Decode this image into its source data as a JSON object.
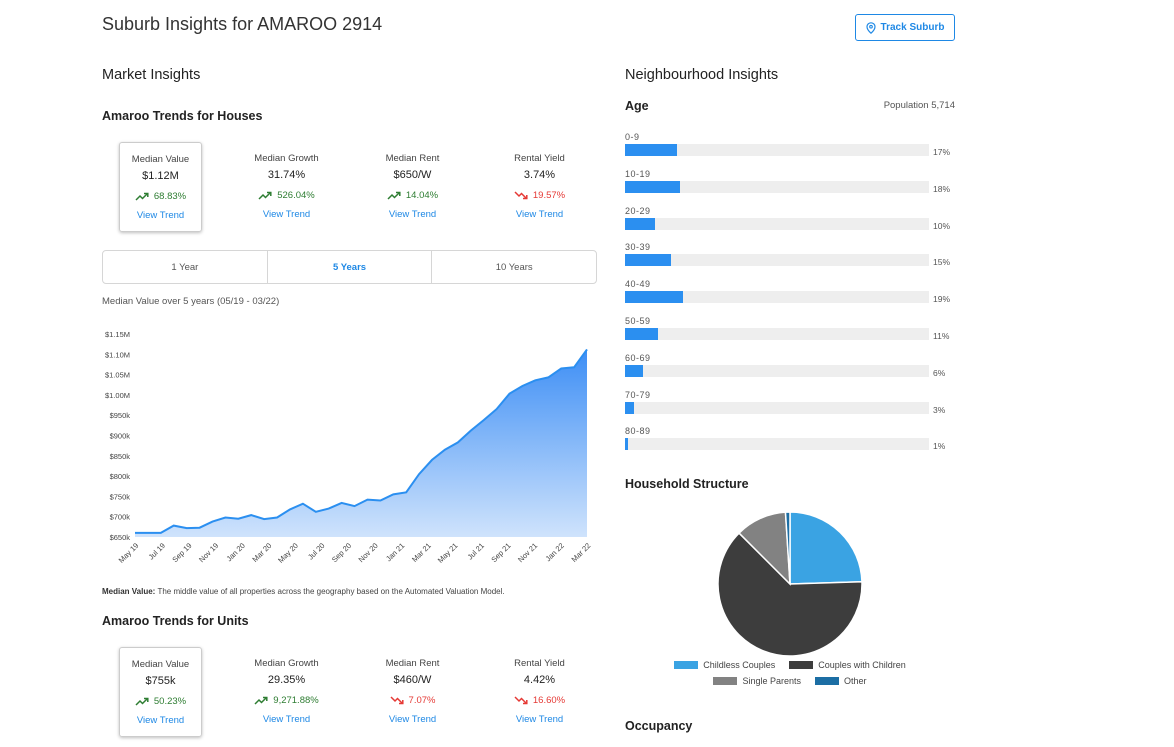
{
  "header": {
    "title": "Suburb Insights for AMAROO 2914",
    "track_label": "Track Suburb"
  },
  "market": {
    "title": "Market Insights",
    "houses": {
      "title": "Amaroo Trends for Houses",
      "stats": [
        {
          "label": "Median Value",
          "value": "$1.12M",
          "change": "68.83%",
          "direction": "up",
          "link": "View Trend"
        },
        {
          "label": "Median Growth",
          "value": "31.74%",
          "change": "526.04%",
          "direction": "up",
          "link": "View Trend"
        },
        {
          "label": "Median Rent",
          "value": "$650/W",
          "change": "14.04%",
          "direction": "up",
          "link": "View Trend"
        },
        {
          "label": "Rental Yield",
          "value": "3.74%",
          "change": "19.57%",
          "direction": "down",
          "link": "View Trend"
        }
      ]
    },
    "range_tabs": [
      "1 Year",
      "5 Years",
      "10 Years"
    ],
    "active_range": "5 Years",
    "chart_caption": "Median Value over 5 years (05/19 - 03/22)",
    "footnote_label": "Median Value:",
    "footnote_text": " The middle value of all properties across the geography based on the Automated Valuation Model.",
    "units": {
      "title": "Amaroo Trends for Units",
      "stats": [
        {
          "label": "Median Value",
          "value": "$755k",
          "change": "50.23%",
          "direction": "up",
          "link": "View Trend"
        },
        {
          "label": "Median Growth",
          "value": "29.35%",
          "change": "9,271.88%",
          "direction": "up",
          "link": "View Trend"
        },
        {
          "label": "Median Rent",
          "value": "$460/W",
          "change": "7.07%",
          "direction": "down",
          "link": "View Trend"
        },
        {
          "label": "Rental Yield",
          "value": "4.42%",
          "change": "16.60%",
          "direction": "down",
          "link": "View Trend"
        }
      ]
    }
  },
  "neighbourhood": {
    "title": "Neighbourhood Insights",
    "age_title": "Age",
    "population_label": "Population 5,714",
    "household_title": "Household Structure",
    "occupancy_title": "Occupancy"
  },
  "colors": {
    "accent": "#1e88e5",
    "bar": "#2b8ff0",
    "up": "#2e7d32",
    "down": "#e53935"
  },
  "chart_data": [
    {
      "type": "area",
      "title": "",
      "xlabel": "",
      "ylabel": "",
      "x_ticks": [
        "May 19",
        "Jul 19",
        "Sep 19",
        "Nov 19",
        "Jan 20",
        "Mar 20",
        "May 20",
        "Jul 20",
        "Sep 20",
        "Nov 20",
        "Jan 21",
        "Mar 21",
        "May 21",
        "Jul 21",
        "Sep 21",
        "Nov 21",
        "Jan 22",
        "Mar 22"
      ],
      "y_ticks": [
        "$650k",
        "$700k",
        "$750k",
        "$800k",
        "$850k",
        "$900k",
        "$950k",
        "$1.00M",
        "$1.05M",
        "$1.10M",
        "$1.15M"
      ],
      "ylim": [
        650,
        1150
      ],
      "series": [
        {
          "values": [
            660,
            660,
            660,
            678,
            672,
            673,
            688,
            698,
            695,
            704,
            694,
            698,
            718,
            732,
            712,
            720,
            734,
            726,
            742,
            740,
            755,
            760,
            805,
            840,
            865,
            883,
            912,
            938,
            965,
            1003,
            1022,
            1036,
            1043,
            1065,
            1068,
            1112
          ]
        }
      ],
      "grid": false,
      "legend": "none"
    },
    {
      "type": "bar",
      "orientation": "horizontal",
      "categories": [
        "0-9",
        "10-19",
        "20-29",
        "30-39",
        "40-49",
        "50-59",
        "60-69",
        "70-79",
        "80-89"
      ],
      "values": [
        17,
        18,
        10,
        15,
        19,
        11,
        6,
        3,
        1
      ],
      "labels": [
        "17%",
        "18%",
        "10%",
        "15%",
        "19%",
        "11%",
        "6%",
        "3%",
        "1%"
      ],
      "xlim": [
        0,
        100
      ]
    },
    {
      "type": "pie",
      "categories": [
        "Childless Couples",
        "Couples with Children",
        "Single Parents",
        "Other"
      ],
      "values": [
        24.5,
        63,
        11.5,
        1
      ],
      "colors": [
        "#3aa3e3",
        "#3d3d3d",
        "#828282",
        "#1c6ea4"
      ],
      "legend": "bottom"
    }
  ]
}
